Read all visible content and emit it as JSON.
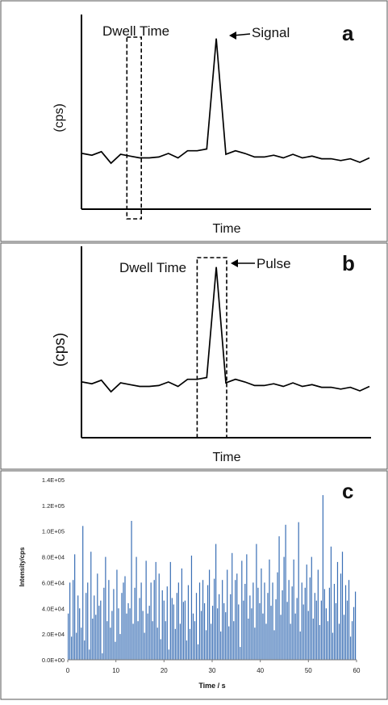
{
  "chart_data": [
    {
      "panel_label": "a",
      "type": "line",
      "xlabel": "Time",
      "ylabel": "(cps)",
      "annotations": {
        "dwell": "Dwell Time",
        "peak": "Signal"
      },
      "peak_index": 13,
      "dwell_box_index": [
        4,
        6
      ],
      "values": [
        63,
        61,
        65,
        52,
        62,
        60,
        58,
        58,
        59,
        63,
        58,
        66,
        66,
        68,
        193,
        62,
        66,
        63,
        59,
        59,
        61,
        58,
        62,
        58,
        60,
        57,
        57,
        55,
        57,
        53,
        58
      ]
    },
    {
      "panel_label": "b",
      "type": "line",
      "xlabel": "Time",
      "ylabel": "(cps)",
      "annotations": {
        "dwell": "Dwell Time",
        "peak": "Pulse"
      },
      "peak_index": 13,
      "dwell_box_index": [
        12,
        14
      ],
      "values": [
        63,
        61,
        65,
        52,
        62,
        60,
        58,
        58,
        59,
        63,
        58,
        66,
        66,
        68,
        193,
        62,
        66,
        63,
        59,
        59,
        61,
        58,
        62,
        58,
        60,
        57,
        57,
        55,
        57,
        53,
        58
      ]
    },
    {
      "panel_label": "c",
      "type": "bar",
      "xlabel": "Time / s",
      "ylabel": "Intensity/cps",
      "ylim": [
        0,
        140000
      ],
      "xlim": [
        0,
        60
      ],
      "x_ticks": [
        "0",
        "10",
        "20",
        "30",
        "40",
        "50",
        "60"
      ],
      "y_ticks": [
        "0.0E+00",
        "2.0E+04",
        "4.0E+04",
        "6.0E+04",
        "8.0E+04",
        "1.0E+05",
        "1.2E+05",
        "1.4E+05"
      ],
      "color": "#3a6fb5",
      "values": [
        36000,
        60000,
        18000,
        62000,
        82000,
        21000,
        50000,
        40000,
        25000,
        104000,
        15000,
        52000,
        60000,
        8000,
        84000,
        32000,
        50000,
        35000,
        67000,
        42000,
        46000,
        5000,
        56000,
        80000,
        30000,
        62000,
        25000,
        38000,
        55000,
        14000,
        70000,
        40000,
        20000,
        52000,
        60000,
        65000,
        36000,
        44000,
        40000,
        108000,
        28000,
        56000,
        80000,
        30000,
        48000,
        60000,
        38000,
        21000,
        77000,
        36000,
        42000,
        60000,
        30000,
        62000,
        76000,
        25000,
        67000,
        16000,
        54000,
        46000,
        30000,
        57000,
        8000,
        76000,
        48000,
        43000,
        24000,
        52000,
        60000,
        28000,
        71000,
        45000,
        46000,
        15000,
        58000,
        24000,
        81000,
        36000,
        30000,
        52000,
        12000,
        60000,
        38000,
        62000,
        44000,
        23000,
        58000,
        70000,
        28000,
        42000,
        63000,
        90000,
        40000,
        51000,
        22000,
        62000,
        44000,
        37000,
        70000,
        26000,
        51000,
        83000,
        30000,
        62000,
        67000,
        43000,
        10000,
        77000,
        46000,
        59000,
        82000,
        32000,
        50000,
        40000,
        60000,
        25000,
        90000,
        56000,
        44000,
        71000,
        36000,
        60000,
        28000,
        52000,
        78000,
        42000,
        60000,
        23000,
        47000,
        68000,
        96000,
        35000,
        54000,
        80000,
        105000,
        45000,
        62000,
        28000,
        57000,
        78000,
        36000,
        48000,
        107000,
        22000,
        60000,
        43000,
        56000,
        74000,
        38000,
        64000,
        80000,
        32000,
        52000,
        46000,
        70000,
        27000,
        46000,
        128000,
        55000,
        40000,
        30000,
        56000,
        88000,
        21000,
        59000,
        44000,
        76000,
        28000,
        67000,
        84000,
        35000,
        58000,
        46000,
        62000,
        18000,
        30000,
        41000,
        53000
      ]
    }
  ]
}
